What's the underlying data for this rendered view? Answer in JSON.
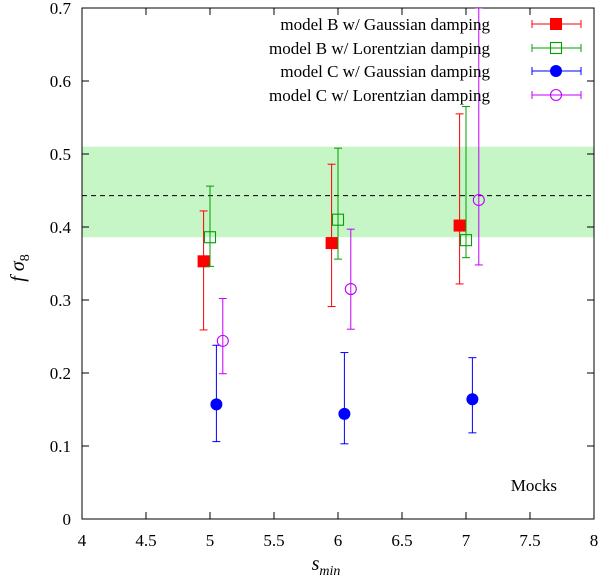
{
  "chart_data": {
    "type": "scatter",
    "title": "",
    "xlabel": "s",
    "xlabel_sub": "min",
    "ylabel": "f σ",
    "ylabel_sub": "8",
    "xlim": [
      4,
      8
    ],
    "ylim": [
      0,
      0.7
    ],
    "xticks": [
      4,
      4.5,
      5,
      5.5,
      6,
      6.5,
      7,
      7.5,
      8
    ],
    "xtick_labels": [
      "4",
      "4.5",
      "5",
      "5.5",
      "6",
      "6.5",
      "7",
      "7.5",
      "8"
    ],
    "yticks": [
      0,
      0.1,
      0.2,
      0.3,
      0.4,
      0.5,
      0.6,
      0.7
    ],
    "ytick_labels": [
      "0",
      "0.1",
      "0.2",
      "0.3",
      "0.4",
      "0.5",
      "0.6",
      "0.7"
    ],
    "grid": false,
    "legend_position": "top-right",
    "reference": {
      "value": 0.443,
      "band": [
        0.386,
        0.51
      ],
      "band_color": "#c6f5c6",
      "line_color": "#000000"
    },
    "series": [
      {
        "name": "model B w/ Gaussian damping",
        "color": "#ff0000",
        "marker": "filled-square",
        "points": [
          {
            "x": 4.95,
            "y": 0.353,
            "ylo": 0.259,
            "yhi": 0.422
          },
          {
            "x": 5.95,
            "y": 0.378,
            "ylo": 0.291,
            "yhi": 0.486
          },
          {
            "x": 6.95,
            "y": 0.402,
            "ylo": 0.322,
            "yhi": 0.555
          }
        ]
      },
      {
        "name": "model B w/ Lorentzian damping",
        "color": "#00a000",
        "marker": "open-square",
        "points": [
          {
            "x": 5.0,
            "y": 0.386,
            "ylo": 0.346,
            "yhi": 0.456
          },
          {
            "x": 6.0,
            "y": 0.41,
            "ylo": 0.356,
            "yhi": 0.508
          },
          {
            "x": 7.0,
            "y": 0.382,
            "ylo": 0.358,
            "yhi": 0.565
          }
        ]
      },
      {
        "name": "model C w/ Gaussian damping",
        "color": "#0000ff",
        "marker": "filled-circle",
        "points": [
          {
            "x": 5.05,
            "y": 0.157,
            "ylo": 0.106,
            "yhi": 0.238
          },
          {
            "x": 6.05,
            "y": 0.144,
            "ylo": 0.103,
            "yhi": 0.228
          },
          {
            "x": 7.05,
            "y": 0.164,
            "ylo": 0.118,
            "yhi": 0.221
          }
        ]
      },
      {
        "name": "model C w/ Lorentzian damping",
        "color": "#c000ff",
        "marker": "open-circle",
        "points": [
          {
            "x": 5.1,
            "y": 0.244,
            "ylo": 0.199,
            "yhi": 0.302
          },
          {
            "x": 6.1,
            "y": 0.315,
            "ylo": 0.26,
            "yhi": 0.397
          },
          {
            "x": 7.1,
            "y": 0.437,
            "ylo": 0.348,
            "yhi": 0.7
          }
        ]
      }
    ],
    "annotations": [
      "Mocks"
    ]
  }
}
